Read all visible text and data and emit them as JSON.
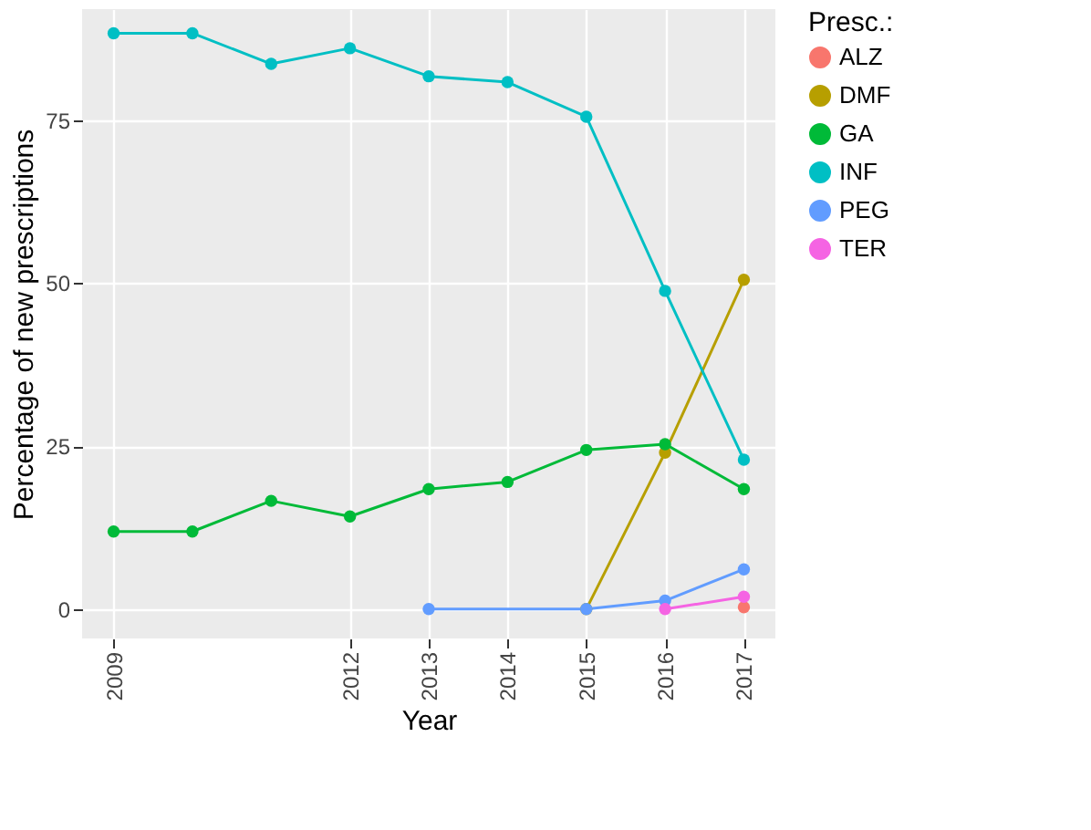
{
  "chart_data": {
    "type": "line",
    "xlabel": "Year",
    "ylabel": "Percentage of new prescriptions",
    "legend_title": "Presc.:",
    "legend": "right",
    "grid": true,
    "marker": "circle",
    "line_style": "solid",
    "xlim": [
      2008.6,
      2017.4
    ],
    "xticks": [
      2009,
      2012,
      2013,
      2014,
      2015,
      2016,
      2017
    ],
    "ylim": [
      -4.5,
      92
    ],
    "yticks": [
      0,
      25,
      50,
      75
    ],
    "series": [
      {
        "name": "ALZ",
        "color": "#f8766d",
        "x": [
          2017
        ],
        "values": [
          0.3
        ]
      },
      {
        "name": "DMF",
        "color": "#b79f00",
        "x": [
          2015,
          2016,
          2017
        ],
        "values": [
          0,
          24,
          50.5
        ]
      },
      {
        "name": "GA",
        "color": "#00ba38",
        "x": [
          2009,
          2010,
          2011,
          2012,
          2013,
          2014,
          2015,
          2016,
          2017
        ],
        "values": [
          11.9,
          11.9,
          16.6,
          14.2,
          18.4,
          19.5,
          24.4,
          25.3,
          18.4
        ]
      },
      {
        "name": "INF",
        "color": "#00bfc4",
        "x": [
          2009,
          2010,
          2011,
          2012,
          2013,
          2014,
          2015,
          2016,
          2017
        ],
        "values": [
          88.3,
          88.3,
          83.6,
          86,
          81.7,
          80.8,
          75.5,
          48.8,
          22.9
        ]
      },
      {
        "name": "PEG",
        "color": "#619cff",
        "x": [
          2013,
          2015,
          2016,
          2017
        ],
        "values": [
          0,
          0,
          1.3,
          6.1
        ]
      },
      {
        "name": "TER",
        "color": "#f564e3",
        "x": [
          2016,
          2017
        ],
        "values": [
          0,
          1.9
        ]
      }
    ]
  }
}
